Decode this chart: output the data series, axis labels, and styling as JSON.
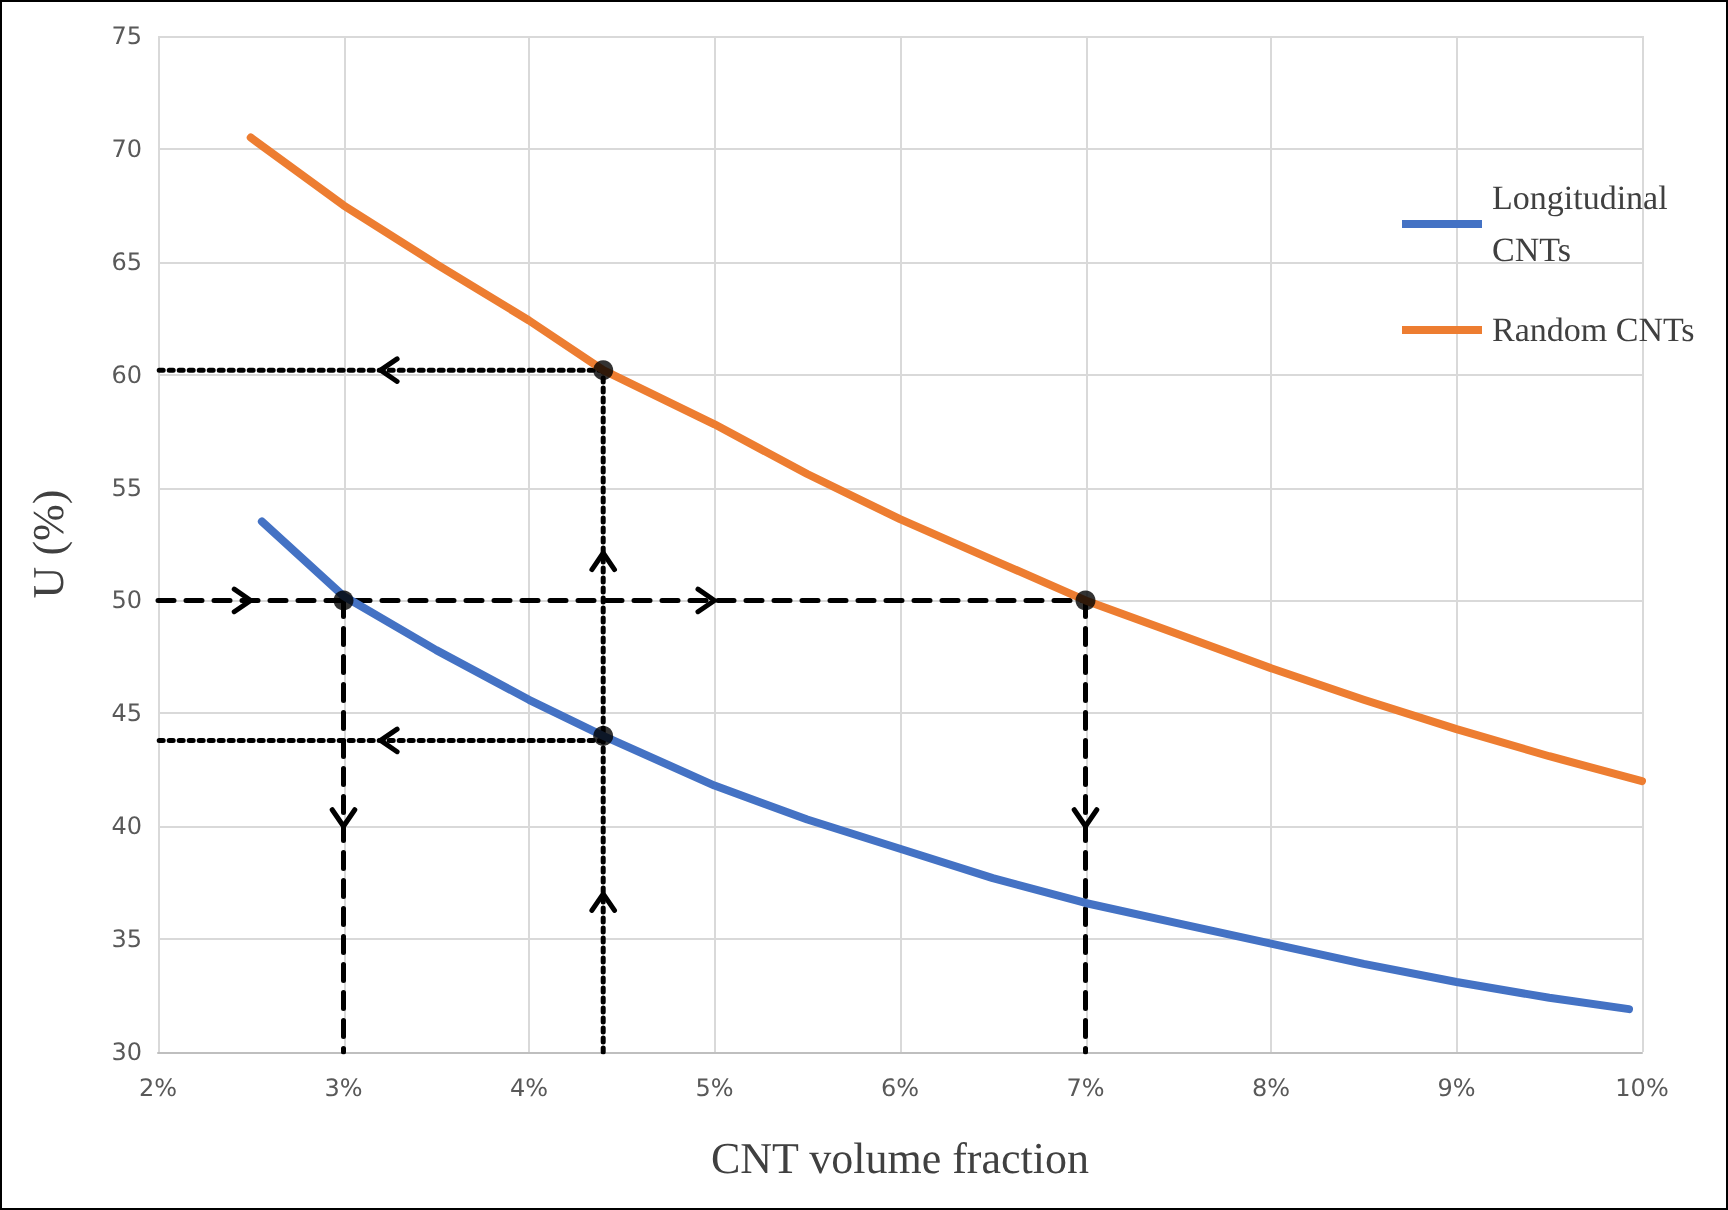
{
  "chart_data": {
    "type": "line",
    "xlabel": "CNT volume fraction",
    "ylabel": "U (%)",
    "xlim": [
      2,
      10
    ],
    "xticks": [
      {
        "value": 2,
        "label": "2%"
      },
      {
        "value": 3,
        "label": "3%"
      },
      {
        "value": 4,
        "label": "4%"
      },
      {
        "value": 5,
        "label": "5%"
      },
      {
        "value": 6,
        "label": "6%"
      },
      {
        "value": 7,
        "label": "7%"
      },
      {
        "value": 8,
        "label": "8%"
      },
      {
        "value": 9,
        "label": "9%"
      },
      {
        "value": 10,
        "label": "10%"
      }
    ],
    "ylim": [
      30,
      75
    ],
    "yticks": [
      30,
      35,
      40,
      45,
      50,
      55,
      60,
      65,
      70,
      75
    ],
    "grid": true,
    "legend": "top right",
    "marker": "none",
    "line_style": "solid",
    "series": [
      {
        "name": "Longitudinal CNTs",
        "color": "#4472c4",
        "x": [
          2.56,
          3,
          3.5,
          4,
          4.4,
          5,
          5.5,
          6,
          6.5,
          7,
          7.5,
          8,
          8.5,
          9,
          9.5,
          9.93
        ],
        "values": [
          53.5,
          50.2,
          47.8,
          45.6,
          44,
          41.8,
          40.3,
          39,
          37.7,
          36.6,
          35.7,
          34.8,
          33.9,
          33.1,
          32.4,
          31.9
        ]
      },
      {
        "name": "Random CNTs",
        "color": "#ed7d31",
        "x": [
          2.5,
          3,
          3.5,
          4,
          4.4,
          5,
          5.5,
          6,
          6.5,
          7,
          7.5,
          8,
          8.5,
          9,
          9.5,
          10
        ],
        "values": [
          70.5,
          67.5,
          64.9,
          62.4,
          60.2,
          57.8,
          55.6,
          53.6,
          51.8,
          50,
          48.5,
          47,
          45.6,
          44.3,
          43.1,
          42
        ]
      },
      {
        "type": "line",
        "color": "#000000",
        "line_style": "dashed",
        "x": [
          2,
          3,
          7
        ],
        "values": [
          50,
          50,
          50
        ]
      },
      {
        "type": "line",
        "color": "#000000",
        "line_style": "dashed",
        "x": [
          3,
          3
        ],
        "values": [
          50,
          30
        ]
      },
      {
        "type": "line",
        "color": "#000000",
        "line_style": "dashed",
        "x": [
          7,
          7
        ],
        "values": [
          50,
          30
        ]
      },
      {
        "type": "line",
        "color": "#000000",
        "line_style": "dotted",
        "x": [
          4.4,
          4.4,
          4.4
        ],
        "values": [
          30,
          44,
          60.2
        ]
      },
      {
        "type": "line",
        "color": "#000000",
        "line_style": "dotted",
        "x": [
          4.4,
          2
        ],
        "values": [
          60.2,
          60.2
        ]
      },
      {
        "type": "line",
        "color": "#000000",
        "line_style": "dotted",
        "x": [
          4.4,
          2
        ],
        "values": [
          43.8,
          43.8
        ]
      },
      {
        "type": "scatter",
        "color": "#000000",
        "marker": "circle",
        "x": [
          3,
          7,
          4.4,
          4.4
        ],
        "values": [
          50,
          50,
          60.2,
          44
        ]
      }
    ]
  }
}
